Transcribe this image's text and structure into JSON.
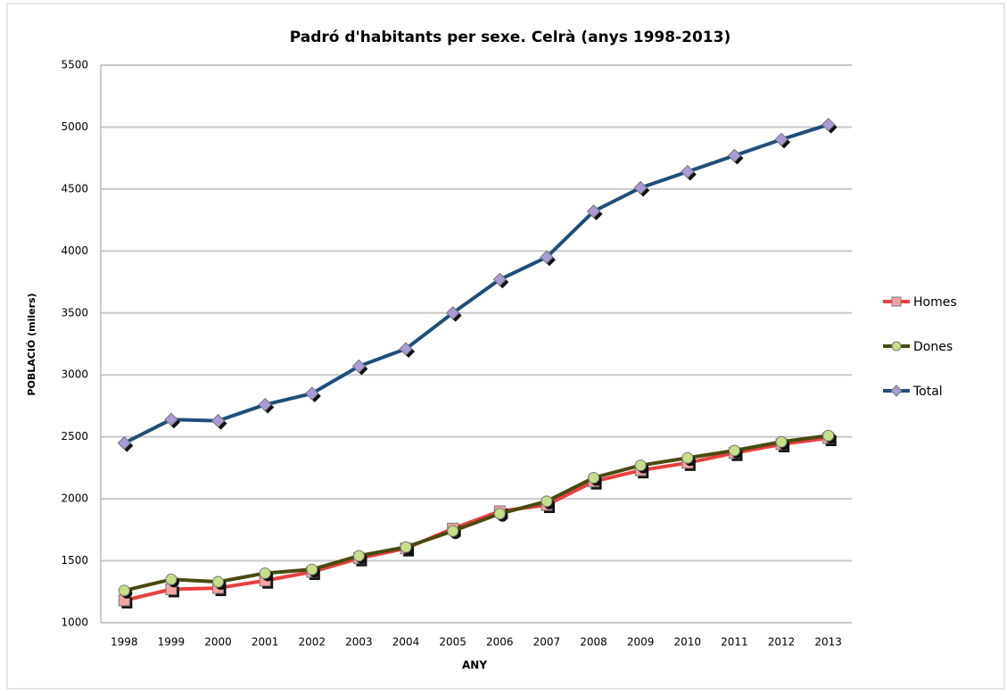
{
  "chart_data": {
    "type": "line",
    "title": "Padró d'habitants per sexe. Celrà (anys 1998-2013)",
    "x_label": "ANY",
    "y_label": "POBLACIÓ (milers)",
    "categories": [
      "1998",
      "1999",
      "2000",
      "2001",
      "2002",
      "2003",
      "2004",
      "2005",
      "2006",
      "2007",
      "2008",
      "2009",
      "2010",
      "2011",
      "2012",
      "2013"
    ],
    "series": [
      {
        "name": "Homes",
        "color": "#e8403f",
        "marker": "square",
        "marker_color": "#f4a3a0",
        "values": [
          1180,
          1270,
          1280,
          1340,
          1410,
          1520,
          1600,
          1760,
          1900,
          1950,
          2140,
          2230,
          2290,
          2370,
          2440,
          2490
        ]
      },
      {
        "name": "Dones",
        "color": "#4a4a10",
        "marker": "circle",
        "marker_color": "#c5df8a",
        "values": [
          1260,
          1350,
          1330,
          1400,
          1430,
          1540,
          1610,
          1740,
          1880,
          1980,
          2170,
          2270,
          2330,
          2390,
          2460,
          2510
        ]
      },
      {
        "name": "Total",
        "color": "#1f4e79",
        "marker": "diamond",
        "marker_color": "#a99ad8",
        "values": [
          2450,
          2640,
          2630,
          2760,
          2850,
          3070,
          3210,
          3500,
          3770,
          3950,
          4320,
          4510,
          4640,
          4770,
          4900,
          5020
        ]
      }
    ],
    "ylim": [
      1000,
      5500
    ],
    "yticks": [
      1000,
      1500,
      2000,
      2500,
      3000,
      3500,
      4000,
      4500,
      5000,
      5500
    ],
    "grid": true,
    "legend": "right"
  }
}
